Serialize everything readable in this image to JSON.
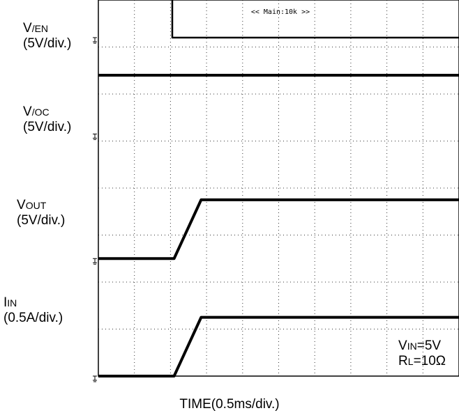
{
  "chart_data": {
    "type": "line",
    "title": "",
    "xlabel": "TIME(0.5ms/div.)",
    "timebase_label": "<< Main:10k >>",
    "grid": true,
    "divisions": {
      "x": 10,
      "y": 8
    },
    "x_unit": "div",
    "xlim": [
      0,
      10
    ],
    "series": [
      {
        "name_main": "V",
        "name_sub": "/EN",
        "scale": "(5V/div.)",
        "y_unit": "div",
        "ground_level": 6.7,
        "points": [
          [
            0,
            7.95
          ],
          [
            2.05,
            7.95
          ],
          [
            2.05,
            6.7
          ],
          [
            10,
            6.7
          ]
        ]
      },
      {
        "name_main": "V",
        "name_sub": "/OC",
        "scale": "(5V/div.)",
        "y_unit": "div",
        "ground_level": 4.65,
        "points": [
          [
            0,
            5.9
          ],
          [
            10,
            5.9
          ]
        ]
      },
      {
        "name_main": "V",
        "name_sub": "OUT",
        "scale": "(5V/div.)",
        "y_unit": "div",
        "ground_level": 2.0,
        "points": [
          [
            0,
            2.0
          ],
          [
            2.1,
            2.0
          ],
          [
            2.85,
            3.25
          ],
          [
            10,
            3.25
          ]
        ]
      },
      {
        "name_main": "I",
        "name_sub": "IN",
        "scale": "(0.5A/div.)",
        "y_unit": "div",
        "ground_level": -0.5,
        "points": [
          [
            0,
            -0.5
          ],
          [
            2.1,
            -0.5
          ],
          [
            2.85,
            0.75
          ],
          [
            10,
            0.75
          ]
        ]
      }
    ],
    "conditions": [
      {
        "main": "V",
        "sub": "IN",
        "value": "=5V"
      },
      {
        "main": "R",
        "sub": "L",
        "value": "=10Ω"
      }
    ]
  }
}
